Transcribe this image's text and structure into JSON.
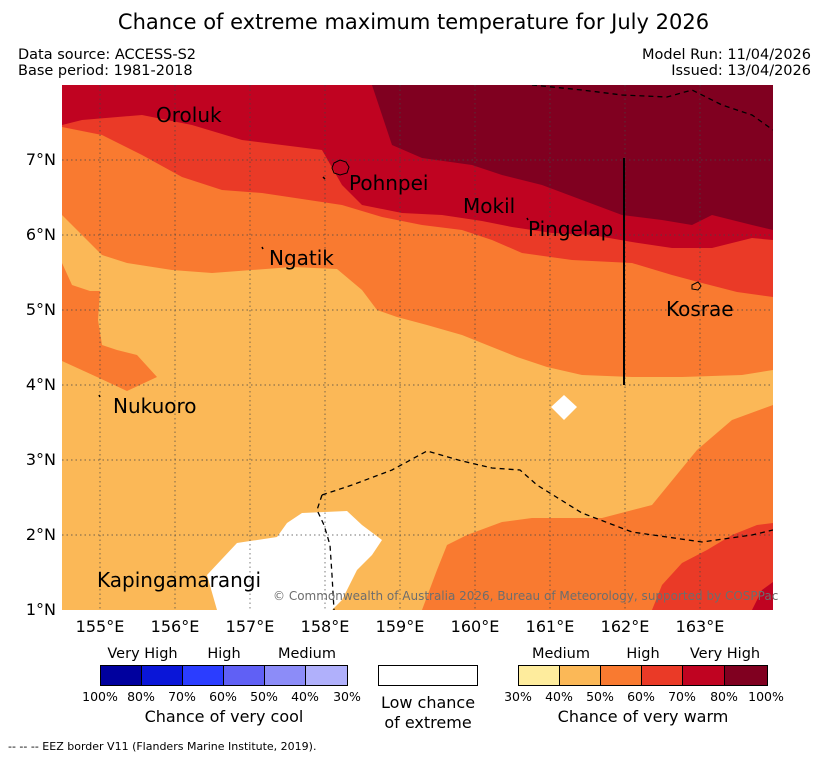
{
  "title": "Chance of extreme maximum temperature for July 2026",
  "header": {
    "data_source": "Data source: ACCESS-S2",
    "base_period": "Base period: 1981-2018",
    "model_run": "Model Run: 11/04/2026",
    "issued": "Issued: 13/04/2026"
  },
  "map": {
    "lat_labels": [
      "7°N",
      "6°N",
      "5°N",
      "4°N",
      "3°N",
      "2°N",
      "1°N"
    ],
    "lon_labels": [
      "155°E",
      "156°E",
      "157°E",
      "158°E",
      "159°E",
      "160°E",
      "161°E",
      "162°E",
      "163°E"
    ],
    "places": [
      "Oroluk",
      "Pohnpei",
      "Mokil",
      "Pingelap",
      "Ngatik",
      "Kosrae",
      "Nukuoro",
      "Kapingamarangi"
    ],
    "copyright": "© Commonwealth of Australia 2026, Bureau of Meteorology, supported by COSPPac"
  },
  "legend": {
    "cool": {
      "categories": [
        "Very High",
        "High",
        "Medium"
      ],
      "ticks": [
        "100%",
        "80%",
        "70%",
        "60%",
        "50%",
        "40%",
        "30%"
      ],
      "title": "Chance of very cool",
      "colors": [
        "#00009e",
        "#0a16d8",
        "#2b3dff",
        "#6060f5",
        "#8c8cf8",
        "#b0b0fb"
      ]
    },
    "neutral": {
      "line1": "Low chance",
      "line2": "of extreme",
      "color": "#ffffff"
    },
    "warm": {
      "categories": [
        "Medium",
        "High",
        "Very High"
      ],
      "ticks": [
        "30%",
        "40%",
        "50%",
        "60%",
        "70%",
        "80%",
        "100%"
      ],
      "title": "Chance of very warm",
      "colors": [
        "#feec9d",
        "#fbb857",
        "#f97a30",
        "#ea3a27",
        "#c00321",
        "#800020"
      ]
    }
  },
  "footnote": "-- -- -- EEZ border V11 (Flanders Marine Institute, 2019)."
}
